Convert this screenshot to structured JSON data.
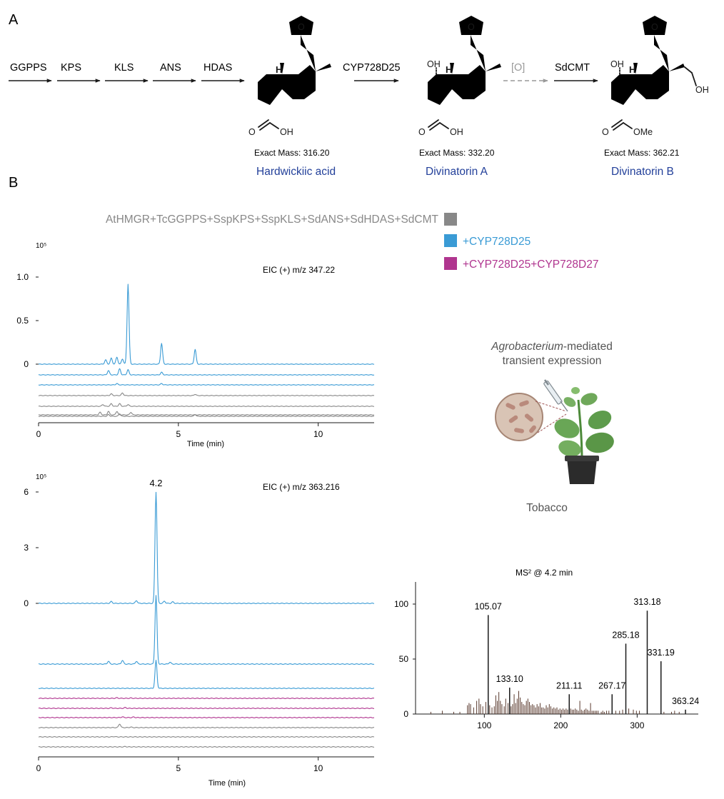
{
  "panel_a": {
    "letter": "A",
    "enzymes_start": [
      "GGPPS",
      "KPS",
      "KLS",
      "ANS",
      "HDAS"
    ],
    "step2_enzyme": "CYP728D25",
    "step3_enzyme": "[O]",
    "step4_enzyme": "SdCMT",
    "compounds": [
      {
        "name": "Hardwickiic acid",
        "mass_label": "Exact Mass: 316.20",
        "groups": {
          "h": "H",
          "acid_oh": "OH",
          "c_eq_o": "O"
        }
      },
      {
        "name": "Divinatorin A",
        "mass_label": "Exact Mass: 332.20",
        "groups": {
          "oh": "OH",
          "h": "H",
          "acid_oh": "OH",
          "c_eq_o": "O"
        }
      },
      {
        "name": "Divinatorin B",
        "mass_label": "Exact Mass: 362.21",
        "groups": {
          "oh": "OH",
          "h": "H",
          "ch2oh": "OH",
          "ome": "OMe",
          "c_eq_o": "O"
        }
      }
    ],
    "furan_o": "O"
  },
  "panel_b": {
    "letter": "B",
    "legend": [
      {
        "label": "AtHMGR+TcGGPPS+SspKPS+SspKLS+SdANS+SdHDAS+SdCMT",
        "color": "#888888"
      },
      {
        "label": "+CYP728D25",
        "color": "#3a9bd5"
      },
      {
        "label": "+CYP728D25+CYP728D27",
        "color": "#b0358f"
      }
    ],
    "tobacco": {
      "caption_italic": "Agrobacterium",
      "caption_rest": "-mediated",
      "caption_line2": "transient expression",
      "label": "Tobacco"
    }
  },
  "colors": {
    "gray": "#888888",
    "blue": "#3a9bd5",
    "magenta": "#b0358f",
    "dark": "#1a1a1a"
  },
  "chart_data": [
    {
      "type": "line",
      "title": "EIC (+) m/z 347.22",
      "xlabel": "Time (min)",
      "ylabel": "",
      "y_exponent": "10⁵",
      "xlim": [
        0,
        12
      ],
      "ylim": [
        0,
        1.0
      ],
      "x_ticks": [
        0,
        5,
        10
      ],
      "y_ticks": [
        {
          "value": 0,
          "label": "0"
        },
        {
          "value": 0.5,
          "label": "0.5"
        },
        {
          "value": 1.0,
          "label": "1.0"
        }
      ],
      "series": [
        {
          "color": "blue",
          "peaks": [
            [
              2.4,
              0.05
            ],
            [
              2.6,
              0.07
            ],
            [
              2.8,
              0.08
            ],
            [
              3.0,
              0.06
            ],
            [
              3.2,
              0.92
            ],
            [
              4.4,
              0.24
            ],
            [
              5.6,
              0.17
            ]
          ]
        },
        {
          "color": "blue",
          "peaks": [
            [
              2.5,
              0.05
            ],
            [
              2.9,
              0.07
            ],
            [
              3.2,
              0.06
            ],
            [
              4.4,
              0.03
            ]
          ]
        },
        {
          "color": "blue",
          "peaks": [
            [
              2.8,
              0.015
            ],
            [
              4.4,
              0.015
            ]
          ]
        },
        {
          "color": "gray",
          "peaks": [
            [
              2.6,
              0.02
            ],
            [
              3.0,
              0.03
            ],
            [
              5.6,
              0.015
            ]
          ]
        },
        {
          "color": "gray",
          "peaks": [
            [
              2.3,
              0.02
            ],
            [
              2.6,
              0.03
            ],
            [
              2.9,
              0.03
            ],
            [
              3.2,
              0.02
            ]
          ]
        },
        {
          "color": "gray",
          "peaks": [
            [
              2.2,
              0.03
            ],
            [
              2.5,
              0.04
            ],
            [
              2.8,
              0.04
            ],
            [
              3.3,
              0.03
            ]
          ]
        },
        {
          "color": "gray",
          "peaks": [
            [
              2.5,
              0.02
            ],
            [
              2.9,
              0.03
            ],
            [
              5.6,
              0.02
            ]
          ]
        }
      ]
    },
    {
      "type": "line",
      "title": "EIC (+) m/z 363.216",
      "xlabel": "Time (min)",
      "ylabel": "",
      "y_exponent": "10⁵",
      "xlim": [
        0,
        12
      ],
      "ylim": [
        0,
        6
      ],
      "x_ticks": [
        0,
        5,
        10
      ],
      "y_ticks": [
        {
          "value": 0,
          "label": "0"
        },
        {
          "value": 3,
          "label": "3"
        },
        {
          "value": 6,
          "label": "6"
        }
      ],
      "peak_annotation": {
        "x": 4.2,
        "label": "4.2"
      },
      "series": [
        {
          "color": "blue",
          "peaks": [
            [
              2.6,
              0.1
            ],
            [
              3.5,
              0.15
            ],
            [
              4.2,
              6.0
            ],
            [
              4.5,
              0.12
            ],
            [
              4.8,
              0.08
            ]
          ]
        },
        {
          "color": "blue",
          "peaks": [
            [
              2.5,
              0.15
            ],
            [
              3.0,
              0.2
            ],
            [
              3.5,
              0.15
            ],
            [
              4.2,
              3.7
            ],
            [
              4.7,
              0.1
            ]
          ]
        },
        {
          "color": "blue",
          "peaks": [
            [
              4.2,
              1.5
            ]
          ]
        },
        {
          "color": "magenta",
          "peaks": [
            [
              2.8,
              0.03
            ],
            [
              3.3,
              0.02
            ]
          ]
        },
        {
          "color": "magenta",
          "peaks": [
            [
              2.6,
              0.03
            ],
            [
              3.1,
              0.04
            ]
          ]
        },
        {
          "color": "magenta",
          "peaks": [
            [
              3.0,
              0.04
            ],
            [
              3.4,
              0.03
            ]
          ]
        },
        {
          "color": "gray",
          "peaks": [
            [
              2.9,
              0.2
            ],
            [
              3.3,
              0.03
            ]
          ]
        },
        {
          "color": "gray",
          "peaks": [
            [
              2.7,
              0.02
            ]
          ]
        },
        {
          "color": "gray",
          "peaks": [
            [
              3.1,
              0.02
            ]
          ]
        }
      ]
    },
    {
      "type": "bar",
      "title": "MS² @ 4.2 min",
      "xlabel": "",
      "ylabel": "",
      "xlim": [
        10,
        380
      ],
      "ylim": [
        0,
        100
      ],
      "x_ticks": [
        100,
        200,
        300
      ],
      "y_ticks": [
        0,
        50,
        100
      ],
      "labeled_peaks": [
        {
          "mz": 105.07,
          "intensity": 90,
          "label": "105.07"
        },
        {
          "mz": 133.1,
          "intensity": 24,
          "label": "133.10"
        },
        {
          "mz": 211.11,
          "intensity": 18,
          "label": "211.11"
        },
        {
          "mz": 267.17,
          "intensity": 18,
          "label": "267.17"
        },
        {
          "mz": 285.18,
          "intensity": 64,
          "label": "285.18"
        },
        {
          "mz": 313.18,
          "intensity": 94,
          "label": "313.18"
        },
        {
          "mz": 331.19,
          "intensity": 48,
          "label": "331.19"
        },
        {
          "mz": 363.24,
          "intensity": 4,
          "label": "363.24"
        }
      ],
      "minor_peaks": [
        [
          30,
          2
        ],
        [
          45,
          3
        ],
        [
          60,
          2
        ],
        [
          68,
          2
        ],
        [
          78,
          8
        ],
        [
          80,
          10
        ],
        [
          82,
          9
        ],
        [
          86,
          6
        ],
        [
          90,
          12
        ],
        [
          93,
          14
        ],
        [
          95,
          9
        ],
        [
          98,
          7
        ],
        [
          102,
          11
        ],
        [
          107,
          8
        ],
        [
          110,
          6
        ],
        [
          113,
          7
        ],
        [
          115,
          17
        ],
        [
          117,
          12
        ],
        [
          119,
          20
        ],
        [
          121,
          12
        ],
        [
          123,
          9
        ],
        [
          126,
          7
        ],
        [
          128,
          14
        ],
        [
          131,
          10
        ],
        [
          135,
          7
        ],
        [
          137,
          9
        ],
        [
          139,
          18
        ],
        [
          141,
          10
        ],
        [
          143,
          14
        ],
        [
          145,
          21
        ],
        [
          147,
          15
        ],
        [
          149,
          11
        ],
        [
          151,
          9
        ],
        [
          153,
          8
        ],
        [
          155,
          12
        ],
        [
          157,
          14
        ],
        [
          159,
          11
        ],
        [
          161,
          8
        ],
        [
          163,
          9
        ],
        [
          165,
          8
        ],
        [
          167,
          6
        ],
        [
          169,
          9
        ],
        [
          171,
          7
        ],
        [
          173,
          10
        ],
        [
          175,
          6
        ],
        [
          177,
          6
        ],
        [
          179,
          5
        ],
        [
          181,
          8
        ],
        [
          183,
          6
        ],
        [
          185,
          9
        ],
        [
          187,
          7
        ],
        [
          189,
          5
        ],
        [
          191,
          6
        ],
        [
          193,
          5
        ],
        [
          195,
          6
        ],
        [
          197,
          4
        ],
        [
          199,
          5
        ],
        [
          201,
          4
        ],
        [
          203,
          5
        ],
        [
          205,
          4
        ],
        [
          207,
          5
        ],
        [
          209,
          4
        ],
        [
          213,
          5
        ],
        [
          215,
          4
        ],
        [
          217,
          4
        ],
        [
          219,
          5
        ],
        [
          221,
          4
        ],
        [
          223,
          3
        ],
        [
          225,
          12
        ],
        [
          227,
          4
        ],
        [
          229,
          3
        ],
        [
          231,
          4
        ],
        [
          233,
          5
        ],
        [
          235,
          4
        ],
        [
          237,
          3
        ],
        [
          239,
          10
        ],
        [
          241,
          3
        ],
        [
          243,
          3
        ],
        [
          245,
          3
        ],
        [
          247,
          3
        ],
        [
          249,
          3
        ],
        [
          253,
          2
        ],
        [
          255,
          3
        ],
        [
          257,
          2
        ],
        [
          260,
          3
        ],
        [
          263,
          3
        ],
        [
          272,
          3
        ],
        [
          277,
          3
        ],
        [
          281,
          4
        ],
        [
          289,
          5
        ],
        [
          295,
          4
        ],
        [
          299,
          3
        ],
        [
          303,
          3
        ],
        [
          335,
          2
        ],
        [
          345,
          2
        ],
        [
          349,
          3
        ],
        [
          355,
          2
        ]
      ]
    }
  ]
}
